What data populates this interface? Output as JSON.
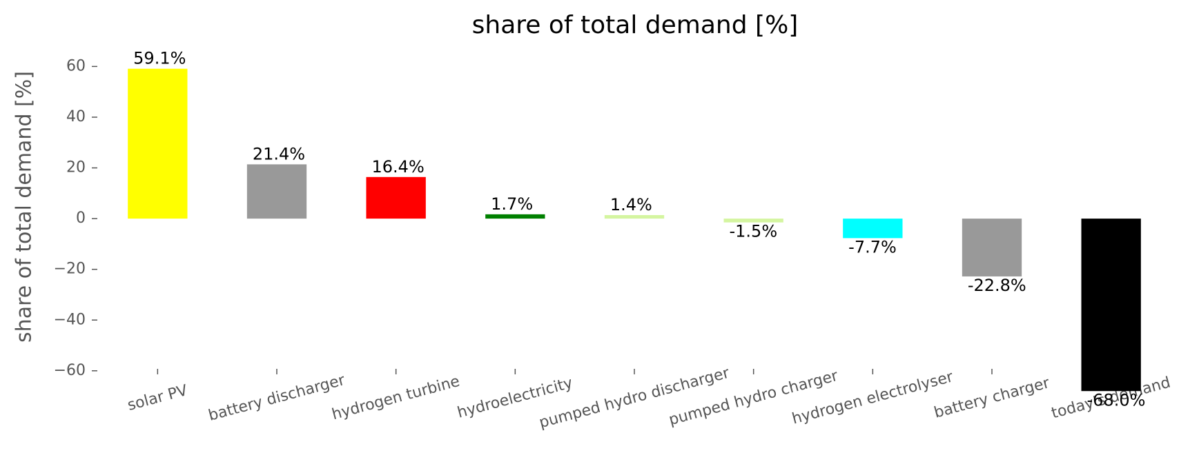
{
  "chart_data": {
    "type": "bar",
    "title": "share of total demand [%]",
    "y_label": "share of total demand [%]",
    "categories": [
      "solar PV",
      "battery discharger",
      "hydrogen turbine",
      "hydroelectricity",
      "pumped hydro discharger",
      "pumped hydro charger",
      "hydrogen electrolyser",
      "battery charger",
      "today's demand"
    ],
    "values": [
      59.1,
      21.4,
      16.4,
      1.7,
      1.4,
      -1.5,
      -7.7,
      -22.8,
      -68.0
    ],
    "value_labels": [
      "59.1%",
      "21.4%",
      "16.4%",
      "1.7%",
      "1.4%",
      "-1.5%",
      "-7.7%",
      "-22.8%",
      "-68.0%"
    ],
    "colors": [
      "#ffff00",
      "#999999",
      "#ff0000",
      "#008000",
      "#d4f5a0",
      "#d4f5a0",
      "#00ffff",
      "#999999",
      "#000000"
    ],
    "ylim": [
      -75,
      65
    ],
    "yticks": [
      {
        "value": -60,
        "label": "−60"
      },
      {
        "value": -40,
        "label": "−40"
      },
      {
        "value": -20,
        "label": "−20"
      },
      0,
      20,
      40,
      60
    ],
    "grid": false
  }
}
